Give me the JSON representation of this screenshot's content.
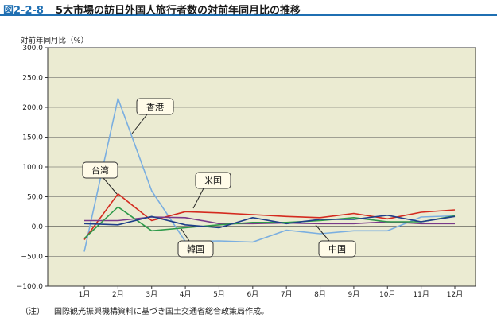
{
  "header": {
    "figure_number": "図2-2-8",
    "title": "5大市場の訪日外国人旅行者数の対前年同月比の推移"
  },
  "note": {
    "label": "（注）",
    "text": "国際観光振興機構資料に基づき国土交通省総合政策局作成。"
  },
  "chart_data": {
    "type": "line",
    "title": "",
    "xlabel": "",
    "ylabel": "対前年同月比（%）",
    "categories": [
      "1月",
      "2月",
      "3月",
      "4月",
      "5月",
      "6月",
      "7月",
      "8月",
      "9月",
      "10月",
      "11月",
      "12月"
    ],
    "ylim": [
      -100,
      300
    ],
    "yticks": [
      "300.0",
      "250.0",
      "200.0",
      "150.0",
      "100.0",
      "50.0",
      "0.0",
      "−50.0",
      "−100.0"
    ],
    "ytick_values": [
      300,
      250,
      200,
      150,
      100,
      50,
      0,
      -50,
      -100
    ],
    "grid": true,
    "plot_background": "#ebebd2",
    "series": [
      {
        "name": "香港",
        "color": "#7aaee0",
        "values": [
          -42,
          215,
          60,
          -25,
          -24,
          -26,
          -6,
          -12,
          -7,
          -7,
          16,
          18
        ]
      },
      {
        "name": "台湾",
        "color": "#d42a1f",
        "values": [
          -22,
          55,
          10,
          25,
          23,
          20,
          17,
          15,
          22,
          13,
          24,
          28
        ]
      },
      {
        "name": "米国",
        "color": "#7a3a8a",
        "values": [
          10,
          10,
          16,
          15,
          5,
          5,
          6,
          5,
          5,
          8,
          5,
          5
        ]
      },
      {
        "name": "韓国",
        "color": "#2e9a4a",
        "values": [
          -20,
          33,
          -7,
          -2,
          3,
          7,
          7,
          10,
          15,
          8,
          8,
          18
        ]
      },
      {
        "name": "中国",
        "color": "#1f3f8a",
        "values": [
          5,
          3,
          17,
          3,
          -2,
          15,
          5,
          12,
          12,
          19,
          8,
          17
        ]
      }
    ]
  }
}
